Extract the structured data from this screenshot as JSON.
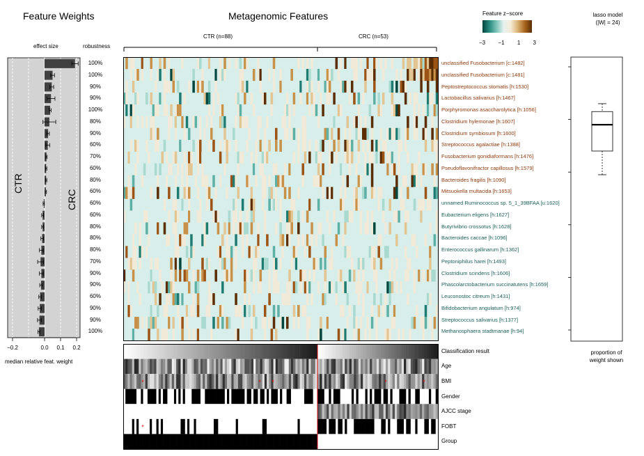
{
  "titles": {
    "feature_weights": "Feature Weights",
    "metagenomic_features": "Metagenomic Features",
    "zscore_legend": "Feature z−score",
    "lasso_line1": "lasso model",
    "lasso_line2": "(|W| = 24)"
  },
  "weights_panel": {
    "effect_size": "effect size",
    "robustness": "robustness",
    "ctr_label": "CTR",
    "crc_label": "CRC",
    "xlabel": "median relative feat. weight",
    "x_ticks": [
      "−0.2",
      "0.0",
      "0.1",
      "0.2"
    ]
  },
  "zscore_ticks": [
    "−3",
    "−1",
    "1",
    "3"
  ],
  "groups": {
    "ctr": "CTR (n=88)",
    "crc": "CRC (n=53)"
  },
  "features": [
    {
      "name": "unclassified Fusobacterium [c:1482]",
      "weight": 0.19,
      "err": 0.02,
      "robustness": "100%",
      "color": "#8b3a0c"
    },
    {
      "name": "unclassified Fusobacterium [c:1481]",
      "weight": 0.05,
      "err": 0.012,
      "robustness": "100%",
      "color": "#8b3a0c"
    },
    {
      "name": "Peptostreptococcus stomatis [h:1530]",
      "weight": 0.045,
      "err": 0.012,
      "robustness": "90%",
      "color": "#8b3a0c"
    },
    {
      "name": "Lactobacillus salivarius [h:1467]",
      "weight": 0.04,
      "err": 0.025,
      "robustness": "90%",
      "color": "#8b3a0c"
    },
    {
      "name": "Porphyromonas asaccharolytica [h:1056]",
      "weight": 0.035,
      "err": 0.006,
      "robustness": "100%",
      "color": "#8b3a0c"
    },
    {
      "name": "Clostridium hylemonae [h:1607]",
      "weight": 0.03,
      "err": 0.04,
      "robustness": "80%",
      "color": "#8b3a0c"
    },
    {
      "name": "Clostridium symbiosum [h:1600]",
      "weight": 0.022,
      "err": 0.008,
      "robustness": "90%",
      "color": "#8b3a0c"
    },
    {
      "name": "Streptococcus agalactiae [h:1388]",
      "weight": 0.02,
      "err": 0.012,
      "robustness": "60%",
      "color": "#8b3a0c"
    },
    {
      "name": "Fusobacterium gonidiaformans [h:1476]",
      "weight": 0.012,
      "err": 0.004,
      "robustness": "70%",
      "color": "#8b3a0c"
    },
    {
      "name": "Pseudoflavonifractor capillosus [h:1579]",
      "weight": 0.01,
      "err": 0.004,
      "robustness": "60%",
      "color": "#8b3a0c"
    },
    {
      "name": "Bacteroides fragilis [h:1090]",
      "weight": 0.01,
      "err": 0.004,
      "robustness": "80%",
      "color": "#8b3a0c"
    },
    {
      "name": "Mitsuokella multacida [h:1653]",
      "weight": 0.008,
      "err": 0.004,
      "robustness": "60%",
      "color": "#8b3a0c"
    },
    {
      "name": "unnamed Ruminococcus sp. 5_1_39BFAA [u:1620]",
      "weight": -0.005,
      "err": 0.004,
      "robustness": "60%",
      "color": "#1a5e5a"
    },
    {
      "name": "Eubacterium eligens [h:1627]",
      "weight": -0.012,
      "err": 0.006,
      "robustness": "60%",
      "color": "#1a5e5a"
    },
    {
      "name": "Butyrivibrio crossotus [h:1628]",
      "weight": -0.012,
      "err": 0.006,
      "robustness": "80%",
      "color": "#1a5e5a"
    },
    {
      "name": "Bacteroides caccae [h:1096]",
      "weight": -0.015,
      "err": 0.008,
      "robustness": "80%",
      "color": "#1a5e5a"
    },
    {
      "name": "Enterococcus gallinarum [h:1362]",
      "weight": -0.02,
      "err": 0.012,
      "robustness": "80%",
      "color": "#1a5e5a"
    },
    {
      "name": "Peptoniphilus harei [h:1493]",
      "weight": -0.025,
      "err": 0.018,
      "robustness": "70%",
      "color": "#1a5e5a"
    },
    {
      "name": "Clostridium scindens [h:1606]",
      "weight": -0.02,
      "err": 0.012,
      "robustness": "90%",
      "color": "#1a5e5a"
    },
    {
      "name": "Phascolarctobacterium succinatutens [h:1659]",
      "weight": -0.022,
      "err": 0.008,
      "robustness": "90%",
      "color": "#1a5e5a"
    },
    {
      "name": "Leuconostoc citreum [h:1431]",
      "weight": -0.028,
      "err": 0.008,
      "robustness": "60%",
      "color": "#1a5e5a"
    },
    {
      "name": "Bifidobacterium angulatum [h:974]",
      "weight": -0.03,
      "err": 0.01,
      "robustness": "90%",
      "color": "#1a5e5a"
    },
    {
      "name": "Streptococcus salivarius [h:1377]",
      "weight": -0.032,
      "err": 0.012,
      "robustness": "90%",
      "color": "#1a5e5a"
    },
    {
      "name": "Methanosphaera stadtmanae [h:94]",
      "weight": -0.035,
      "err": 0.006,
      "robustness": "100%",
      "color": "#1a5e5a"
    }
  ],
  "metadata_rows": [
    "Classification result",
    "Age",
    "BMI",
    "Gender",
    "AJCC stage",
    "FOBT",
    "Group"
  ],
  "lasso_panel": {
    "y_ticks": [
      "0.0",
      "0.2",
      "0.4",
      "0.6",
      "0.8",
      "1.0"
    ],
    "xlabel_line1": "proportion of",
    "xlabel_line2": "weight shown"
  },
  "chart_data": [
    {
      "type": "bar",
      "title": "Feature Weights",
      "xlabel": "median relative feat. weight",
      "xlim": [
        -0.25,
        0.25
      ],
      "categories": [
        "unclassified Fusobacterium [c:1482]",
        "unclassified Fusobacterium [c:1481]",
        "Peptostreptococcus stomatis [h:1530]",
        "Lactobacillus salivarius [h:1467]",
        "Porphyromonas asaccharolytica [h:1056]",
        "Clostridium hylemonae [h:1607]",
        "Clostridium symbiosum [h:1600]",
        "Streptococcus agalactiae [h:1388]",
        "Fusobacterium gonidiaformans [h:1476]",
        "Pseudoflavonifractor capillosus [h:1579]",
        "Bacteroides fragilis [h:1090]",
        "Mitsuokella multacida [h:1653]",
        "unnamed Ruminococcus sp. 5_1_39BFAA [u:1620]",
        "Eubacterium eligens [h:1627]",
        "Butyrivibrio crossotus [h:1628]",
        "Bacteroides caccae [h:1096]",
        "Enterococcus gallinarum [h:1362]",
        "Peptoniphilus harei [h:1493]",
        "Clostridium scindens [h:1606]",
        "Phascolarctobacterium succinatutens [h:1659]",
        "Leuconostoc citreum [h:1431]",
        "Bifidobacterium angulatum [h:974]",
        "Streptococcus salivarius [h:1377]",
        "Methanosphaera stadtmanae [h:94]"
      ],
      "values": [
        0.19,
        0.05,
        0.045,
        0.04,
        0.035,
        0.03,
        0.022,
        0.02,
        0.012,
        0.01,
        0.01,
        0.008,
        -0.005,
        -0.012,
        -0.012,
        -0.015,
        -0.02,
        -0.025,
        -0.02,
        -0.022,
        -0.028,
        -0.03,
        -0.032,
        -0.035
      ]
    },
    {
      "type": "heatmap",
      "title": "Metagenomic Features",
      "colorbar_label": "Feature z−score",
      "colorbar_range": [
        -3,
        3
      ],
      "groups": [
        {
          "name": "CTR",
          "n": 88
        },
        {
          "name": "CRC",
          "n": 53
        }
      ],
      "rows": 24,
      "columns": 141
    },
    {
      "type": "box",
      "title": "lasso model (|W| = 24)",
      "xlabel": "proportion of weight shown",
      "ylim": [
        0,
        1
      ],
      "whisker_low": 0.59,
      "q1": 0.68,
      "median": 0.78,
      "q3": 0.83,
      "whisker_high": 0.86
    }
  ]
}
